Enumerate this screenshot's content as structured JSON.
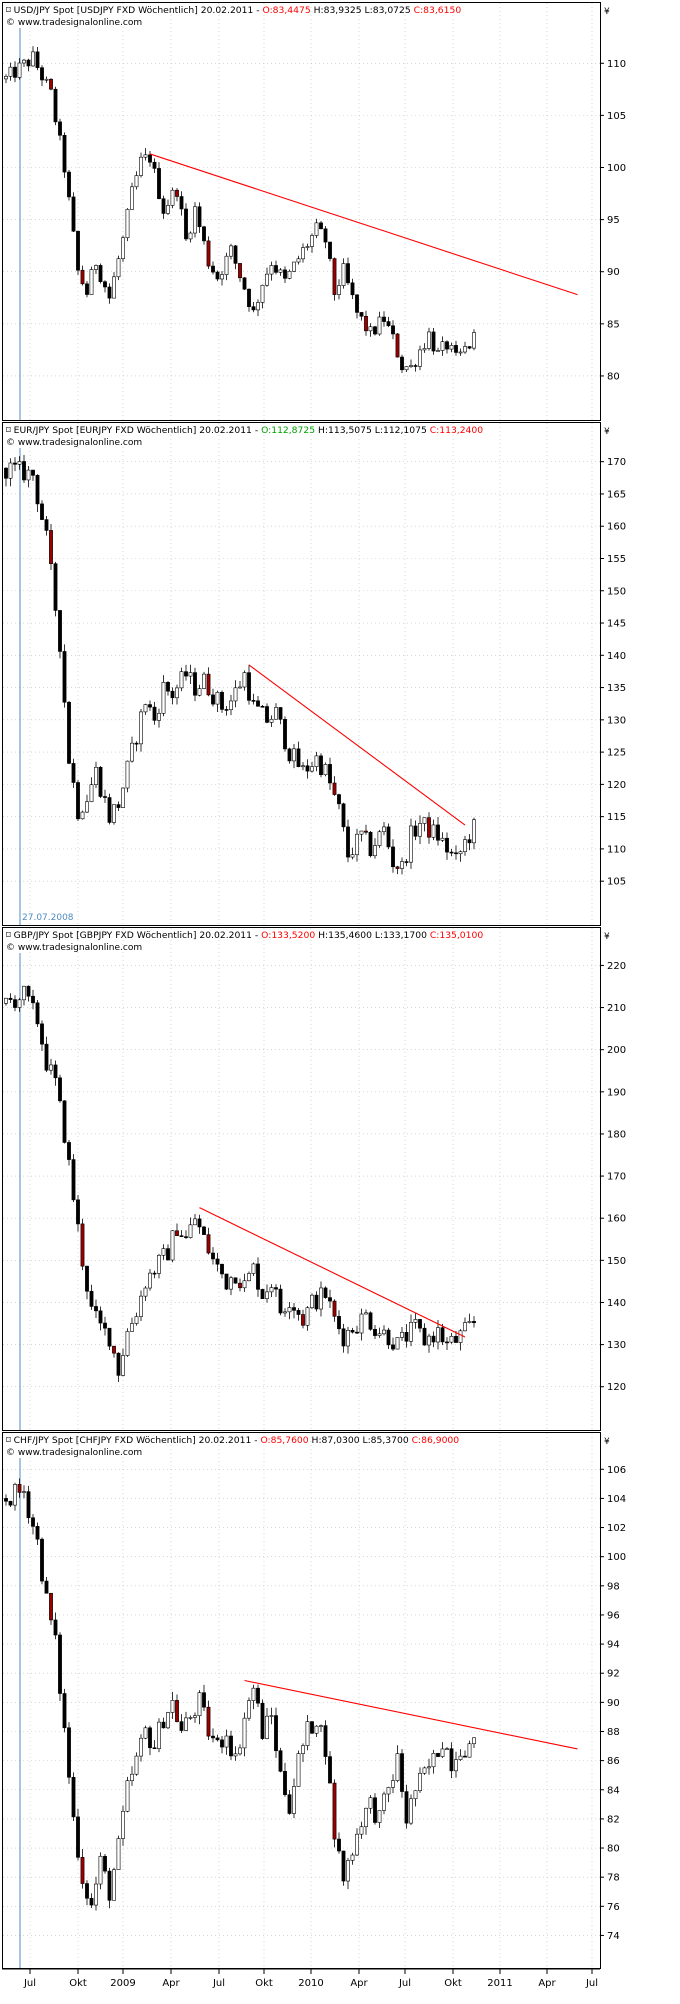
{
  "currency_symbol": "¥",
  "colors": {
    "trendline": "#ff0000",
    "marker": "#4f8bbf",
    "bull_body": "#ffffff",
    "bear_body": "#000000",
    "bear_body_alt": "#990000",
    "open_up": "#00a000",
    "open_down": "#ff0000",
    "close_label": "#ff0000",
    "frame": "#000000",
    "grid": "#bfbfbf"
  },
  "shared_axis": {
    "tick_labels": [
      "Jul",
      "Okt",
      "2009",
      "Apr",
      "Jul",
      "Okt",
      "2010",
      "Apr",
      "Jul",
      "Okt",
      "2011",
      "Apr",
      "Jul"
    ],
    "marker_label": "27.07.2008"
  },
  "chart_data": [
    {
      "type": "candlestick",
      "header": {
        "title": "USD/JPY Spot [USDJPY FXD  Wöchentlich] 20.02.2011 - ",
        "open": "O:83,4475",
        "open_color": "#ff0000",
        "high": "H:83,9325",
        "low": "L:83,0725",
        "close": "C:83,6150",
        "source": "© www.tradesignalonline.com"
      },
      "y_ticks": [
        80,
        85,
        90,
        95,
        100,
        105,
        110
      ],
      "ylim": [
        77.5,
        113
      ],
      "grid": true,
      "series_points": [
        [
          0,
          108.5
        ],
        [
          6,
          110.5
        ],
        [
          10,
          107
        ],
        [
          13,
          100
        ],
        [
          16,
          90
        ],
        [
          18,
          88
        ],
        [
          20,
          91
        ],
        [
          23,
          87.5
        ],
        [
          26,
          93
        ],
        [
          28,
          97.5
        ],
        [
          30,
          100.5
        ],
        [
          32,
          101
        ],
        [
          35,
          96
        ],
        [
          38,
          98
        ],
        [
          40,
          93
        ],
        [
          42,
          96
        ],
        [
          45,
          91
        ],
        [
          47,
          89.5
        ],
        [
          50,
          92
        ],
        [
          53,
          88.5
        ],
        [
          55,
          86
        ],
        [
          57,
          89
        ],
        [
          59,
          91
        ],
        [
          62,
          89
        ],
        [
          66,
          92
        ],
        [
          69,
          94
        ],
        [
          71,
          93
        ],
        [
          73,
          88
        ],
        [
          75,
          90
        ],
        [
          78,
          86
        ],
        [
          81,
          84
        ],
        [
          84,
          85.5
        ],
        [
          86,
          83.5
        ],
        [
          88,
          81
        ],
        [
          90,
          80.8
        ],
        [
          92,
          82.5
        ],
        [
          94,
          84
        ],
        [
          96,
          82
        ],
        [
          98,
          83
        ],
        [
          100,
          81.5
        ],
        [
          102,
          82.5
        ],
        [
          104,
          83.6
        ]
      ],
      "trendlines": [
        {
          "x": [
            32,
            127
          ],
          "y": [
            101.3,
            87.8
          ]
        }
      ]
    },
    {
      "type": "candlestick",
      "header": {
        "title": "EUR/JPY Spot [EURJPY FXD  Wöchentlich] 20.02.2011 - ",
        "open": "O:112,8725",
        "open_color": "#00a000",
        "high": "H:113,5075",
        "low": "L:112,1075",
        "close": "C:113,2400",
        "source": "© www.tradesignalonline.com"
      },
      "y_ticks": [
        105,
        110,
        115,
        120,
        125,
        130,
        135,
        140,
        145,
        150,
        155,
        160,
        165,
        170
      ],
      "ylim": [
        101,
        171.5
      ],
      "grid": true,
      "series_points": [
        [
          0,
          169
        ],
        [
          6,
          168
        ],
        [
          9,
          158
        ],
        [
          12,
          142
        ],
        [
          14,
          124
        ],
        [
          16,
          116
        ],
        [
          18,
          118
        ],
        [
          20,
          122
        ],
        [
          23,
          115
        ],
        [
          25,
          117
        ],
        [
          28,
          125
        ],
        [
          31,
          133
        ],
        [
          33,
          130
        ],
        [
          35,
          135
        ],
        [
          37,
          134
        ],
        [
          40,
          137
        ],
        [
          42,
          135
        ],
        [
          44,
          136
        ],
        [
          46,
          134
        ],
        [
          48,
          132
        ],
        [
          50,
          133
        ],
        [
          53,
          137
        ],
        [
          55,
          132
        ],
        [
          58,
          130
        ],
        [
          60,
          131
        ],
        [
          63,
          125
        ],
        [
          66,
          122
        ],
        [
          69,
          124
        ],
        [
          71,
          122
        ],
        [
          74,
          116
        ],
        [
          76,
          109
        ],
        [
          79,
          112
        ],
        [
          81,
          110
        ],
        [
          84,
          113
        ],
        [
          86,
          108
        ],
        [
          88,
          107
        ],
        [
          90,
          112
        ],
        [
          92,
          114
        ],
        [
          94,
          113
        ],
        [
          96,
          112
        ],
        [
          98,
          110
        ],
        [
          100,
          108
        ],
        [
          102,
          111
        ],
        [
          104,
          113.2
        ]
      ],
      "trendlines": [
        {
          "x": [
            54,
            102
          ],
          "y": [
            138.5,
            113.7
          ]
        }
      ]
    },
    {
      "type": "candlestick",
      "header": {
        "title": "GBP/JPY Spot [GBPJPY FXD  Wöchentlich] 20.02.2011 - ",
        "open": "O:133,5200",
        "open_color": "#ff0000",
        "high": "H:135,4600",
        "low": "L:133,1700",
        "close": "C:135,0100",
        "source": "© www.tradesignalonline.com"
      },
      "y_ticks": [
        120,
        130,
        140,
        150,
        160,
        170,
        180,
        190,
        200,
        210,
        220
      ],
      "ylim": [
        114,
        222
      ],
      "grid": true,
      "series_points": [
        [
          0,
          211
        ],
        [
          4,
          213
        ],
        [
          7,
          207
        ],
        [
          9,
          197
        ],
        [
          11,
          192
        ],
        [
          13,
          180
        ],
        [
          15,
          165
        ],
        [
          17,
          150
        ],
        [
          19,
          138
        ],
        [
          21,
          134
        ],
        [
          23,
          132
        ],
        [
          25,
          124
        ],
        [
          27,
          133
        ],
        [
          29,
          138
        ],
        [
          31,
          145
        ],
        [
          33,
          148
        ],
        [
          36,
          152
        ],
        [
          38,
          158
        ],
        [
          40,
          155
        ],
        [
          42,
          160
        ],
        [
          44,
          155
        ],
        [
          46,
          150
        ],
        [
          49,
          145
        ],
        [
          51,
          147
        ],
        [
          53,
          144
        ],
        [
          55,
          148
        ],
        [
          57,
          142
        ],
        [
          59,
          145
        ],
        [
          61,
          138
        ],
        [
          63,
          141
        ],
        [
          66,
          136
        ],
        [
          68,
          140
        ],
        [
          71,
          142
        ],
        [
          73,
          136
        ],
        [
          75,
          132
        ],
        [
          77,
          134
        ],
        [
          80,
          137
        ],
        [
          82,
          134
        ],
        [
          85,
          132
        ],
        [
          87,
          130
        ],
        [
          89,
          132
        ],
        [
          91,
          134
        ],
        [
          93,
          131
        ],
        [
          96,
          133
        ],
        [
          98,
          130
        ],
        [
          100,
          131
        ],
        [
          102,
          133
        ],
        [
          104,
          135
        ]
      ],
      "trendlines": [
        {
          "x": [
            43,
            102
          ],
          "y": [
            162.5,
            131.8
          ]
        }
      ]
    },
    {
      "type": "candlestick",
      "header": {
        "title": "CHF/JPY Spot [CHFJPY FXD  Wöchentlich] 20.02.2011 - ",
        "open": "O:85,7600",
        "open_color": "#ff0000",
        "high": "H:87,0300",
        "low": "L:85,3700",
        "close": "C:86,9000",
        "source": "© www.tradesignalonline.com"
      },
      "y_ticks": [
        74,
        76,
        78,
        80,
        82,
        84,
        86,
        88,
        90,
        92,
        94,
        96,
        98,
        100,
        102,
        104,
        106
      ],
      "ylim": [
        73,
        106.5
      ],
      "grid": true,
      "series_points": [
        [
          0,
          104
        ],
        [
          4,
          104.5
        ],
        [
          7,
          101
        ],
        [
          9,
          97
        ],
        [
          11,
          94
        ],
        [
          13,
          88
        ],
        [
          15,
          82
        ],
        [
          17,
          78
        ],
        [
          19,
          76
        ],
        [
          21,
          79
        ],
        [
          23,
          77
        ],
        [
          25,
          80
        ],
        [
          27,
          84
        ],
        [
          29,
          86
        ],
        [
          31,
          88
        ],
        [
          33,
          87
        ],
        [
          35,
          89
        ],
        [
          37,
          90
        ],
        [
          39,
          88
        ],
        [
          41,
          89
        ],
        [
          43,
          90
        ],
        [
          45,
          88
        ],
        [
          47,
          87
        ],
        [
          49,
          88
        ],
        [
          51,
          86
        ],
        [
          53,
          89
        ],
        [
          55,
          91
        ],
        [
          57,
          88
        ],
        [
          59,
          89
        ],
        [
          61,
          85
        ],
        [
          63,
          83
        ],
        [
          65,
          86
        ],
        [
          67,
          88
        ],
        [
          69,
          89
        ],
        [
          71,
          87
        ],
        [
          73,
          81
        ],
        [
          75,
          78
        ],
        [
          77,
          80
        ],
        [
          79,
          82
        ],
        [
          81,
          83
        ],
        [
          83,
          82
        ],
        [
          85,
          84
        ],
        [
          87,
          86
        ],
        [
          89,
          82
        ],
        [
          91,
          84
        ],
        [
          93,
          85
        ],
        [
          95,
          86
        ],
        [
          97,
          87.5
        ],
        [
          99,
          86
        ],
        [
          101,
          87
        ],
        [
          104,
          86.9
        ]
      ],
      "trendlines": [
        {
          "x": [
            53,
            127
          ],
          "y": [
            91.5,
            86.8
          ]
        }
      ]
    }
  ]
}
